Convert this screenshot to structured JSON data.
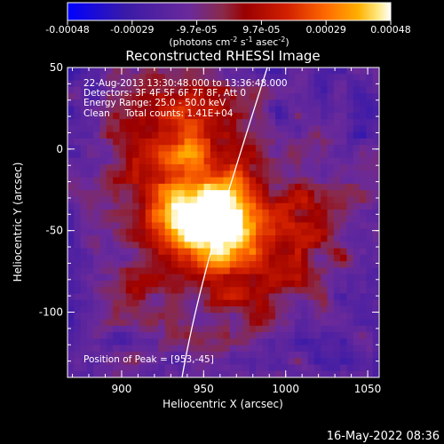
{
  "colorbar": {
    "tick_labels": [
      "-0.00048",
      "-0.00029",
      "-9.7e-05",
      "9.7e-05",
      "0.00029",
      "0.00048"
    ],
    "unit_main": "(photons cm",
    "unit_sup1": "-2",
    "unit_mid1": " s",
    "unit_sup2": "-1",
    "unit_mid2": " asec",
    "unit_sup3": "-2",
    "unit_end": ")",
    "colors": [
      "#0000ff",
      "#3a1aa8",
      "#6b2a9a",
      "#8a2a4a",
      "#9a0000",
      "#d22000",
      "#ff6a00",
      "#ffb000",
      "#ffe880",
      "#ffffff"
    ]
  },
  "plot": {
    "title": "Reconstructed RHESSI Image",
    "xlabel": "Heliocentric X (arcsec)",
    "ylabel": "Heliocentric Y (arcsec)",
    "x_ticks": [
      "900",
      "950",
      "1000",
      "1050"
    ],
    "y_ticks": [
      "50",
      "0",
      "-50",
      "-100"
    ],
    "xlim": [
      867,
      1057
    ],
    "ylim": [
      -140,
      50
    ],
    "annotations": [
      "22-Aug-2013 13:30:48.000 to 13:36:48.000",
      "Detectors: 3F 4F 5F 6F 7F 8F, Att 0",
      "Energy Range: 25.0 - 50.0 keV",
      "Clean     Total counts: 1.41E+04"
    ],
    "peak_label": "Position of Peak = [953,-45]",
    "peak": {
      "x": 953,
      "y": -45
    }
  },
  "footer": {
    "timestamp": "16-May-2022 08:36"
  }
}
